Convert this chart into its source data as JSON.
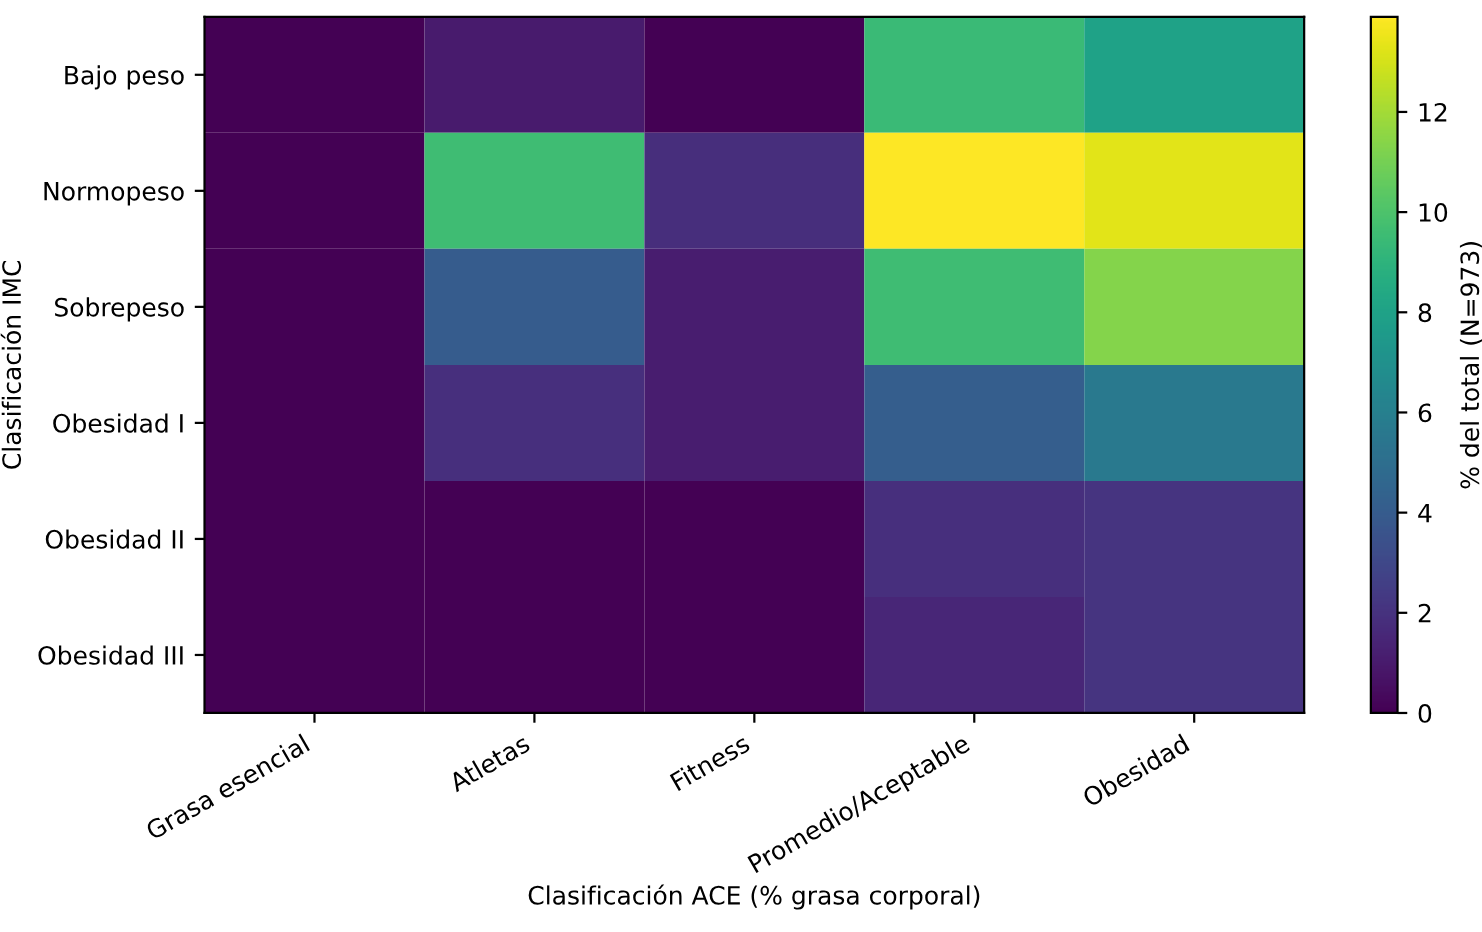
{
  "chart_data": {
    "type": "heatmap",
    "xlabel": "Clasificación ACE (% grasa corporal)",
    "ylabel": "Clasificación IMC",
    "clabel": "% del total (N=973)",
    "categories": [
      "Grasa esencial",
      "Atletas",
      "Fitness",
      "Promedio/Aceptable",
      "Obesidad"
    ],
    "y_categories": [
      "Bajo peso",
      "Normopeso",
      "Sobrepeso",
      "Obesidad I",
      "Obesidad II",
      "Obesidad III"
    ],
    "cells": [
      [
        0,
        1.0,
        0,
        9.4,
        8.0
      ],
      [
        0,
        9.6,
        1.8,
        13.9,
        13.3
      ],
      [
        0,
        4.0,
        1.1,
        9.6,
        11.3
      ],
      [
        0,
        1.9,
        1.1,
        4.1,
        5.6
      ],
      [
        0,
        0,
        0,
        1.9,
        2.1
      ],
      [
        0,
        0,
        0,
        1.5,
        2.1
      ]
    ],
    "clim": [
      0,
      13.9
    ],
    "cticks": [
      0,
      2,
      4,
      6,
      8,
      10,
      12
    ]
  }
}
